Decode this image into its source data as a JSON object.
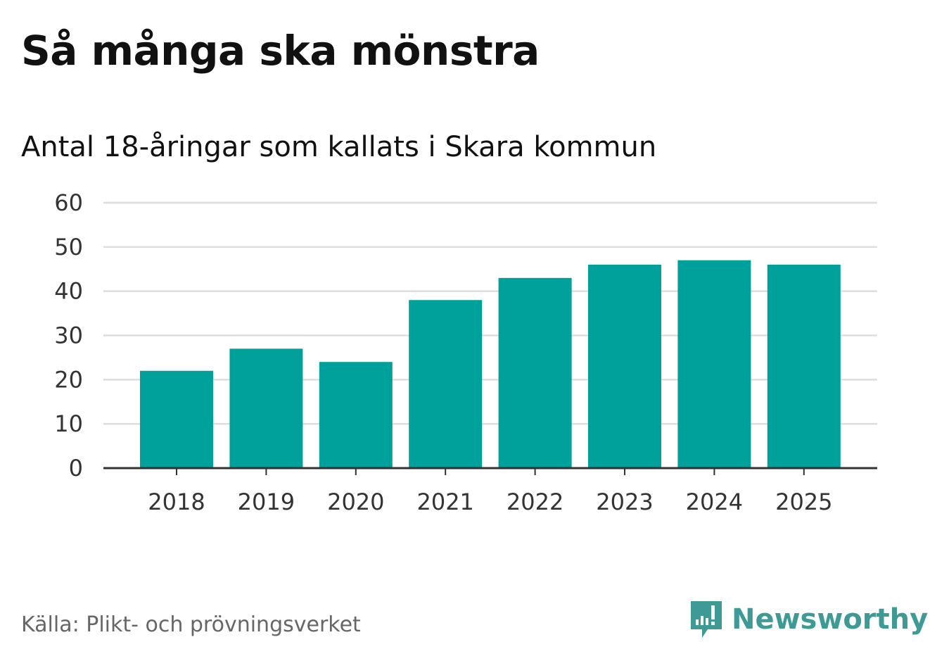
{
  "header": {
    "title": "Så många ska mönstra",
    "subtitle": "Antal 18-åringar som kallats i Skara kommun"
  },
  "footer": {
    "source": "Källa: Plikt- och prövningsverket",
    "brand": "Newsworthy"
  },
  "colors": {
    "bar": "#00a19a",
    "grid": "#dddddd",
    "axis": "#333333",
    "brand": "#3d9a94"
  },
  "chart_data": {
    "type": "bar",
    "title": "Så många ska mönstra",
    "subtitle": "Antal 18-åringar som kallats i Skara kommun",
    "xlabel": "",
    "ylabel": "",
    "categories": [
      "2018",
      "2019",
      "2020",
      "2021",
      "2022",
      "2023",
      "2024",
      "2025"
    ],
    "values": [
      22,
      27,
      24,
      38,
      43,
      46,
      47,
      46
    ],
    "ylim": [
      0,
      60
    ],
    "yticks": [
      0,
      10,
      20,
      30,
      40,
      50,
      60
    ],
    "grid": true,
    "legend": "none"
  }
}
